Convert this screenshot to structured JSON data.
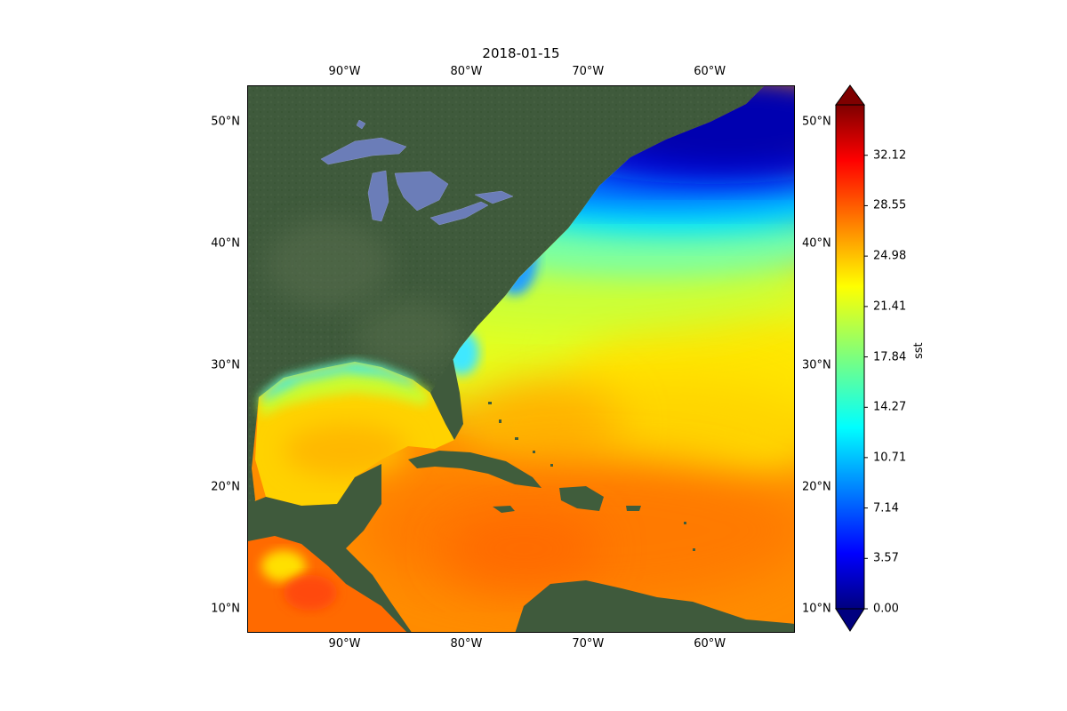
{
  "title": "2018-01-15",
  "map": {
    "projection": "plate-carree",
    "extent": {
      "lon_min": -98,
      "lon_max": -53,
      "lat_min": 8,
      "lat_max": 53
    },
    "lon_ticks": [
      "90°W",
      "80°W",
      "70°W",
      "60°W"
    ],
    "lon_tick_values": [
      -90,
      -80,
      -70,
      -60
    ],
    "lat_ticks": [
      "50°N",
      "40°N",
      "30°N",
      "20°N",
      "10°N"
    ],
    "lat_tick_values": [
      50,
      40,
      30,
      20,
      10
    ],
    "basemap": "satellite imagery"
  },
  "colorbar": {
    "label": "sst",
    "colormap": "jet",
    "extend": "both",
    "vmin": 0.0,
    "vmax": 35.69,
    "tick_labels": [
      "0.00",
      "3.57",
      "7.14",
      "10.71",
      "14.27",
      "17.84",
      "21.41",
      "24.98",
      "28.55",
      "32.12"
    ],
    "tick_values": [
      0.0,
      3.57,
      7.14,
      10.71,
      14.27,
      17.84,
      21.41,
      24.98,
      28.55,
      32.12
    ]
  },
  "colors": {
    "land": "#3d5a3a",
    "lakes": "#6b7db8",
    "jet_low": "#00007f",
    "jet_high": "#7f0000"
  }
}
